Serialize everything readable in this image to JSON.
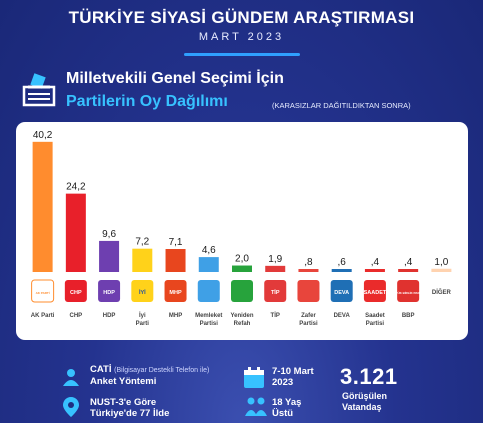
{
  "header": {
    "title": "TÜRKİYE SİYASİ GÜNDEM ARAŞTIRMASI",
    "subtitle": "MART 2023"
  },
  "colors": {
    "accent": "#37c2ff",
    "background": "#1f2d82"
  },
  "chart_data": {
    "type": "bar",
    "title_line1": "Milletvekili Genel Seçimi İçin",
    "title_line2": "Partilerin Oy Dağılımı",
    "note": "(KARASIZLAR DAĞITILDIKTAN SONRA)",
    "categories": [
      "AK Parti",
      "CHP",
      "HDP",
      "İyi Parti",
      "MHP",
      "Memleket Partisi",
      "Yeniden Refah",
      "TİP",
      "Zafer Partisi",
      "DEVA",
      "Saadet Partisi",
      "BBP",
      "DİĞER"
    ],
    "value_labels": [
      "40,2",
      "24,2",
      "9,6",
      "7,2",
      "7,1",
      "4,6",
      "2,0",
      "1,9",
      ",8",
      ",6",
      ",4",
      ",4",
      "1,0"
    ],
    "values": [
      40.2,
      24.2,
      9.6,
      7.2,
      7.1,
      4.6,
      2.0,
      1.9,
      0.8,
      0.6,
      0.4,
      0.4,
      1.0
    ],
    "colors": [
      "#ff8c2e",
      "#e8202a",
      "#6e3fb0",
      "#ffd21a",
      "#e8461e",
      "#3fa0e6",
      "#27a33c",
      "#e23a3a",
      "#e8453c",
      "#1f6fb5",
      "#ea2b2b",
      "#e0322f",
      "#ffd3b0"
    ],
    "logo_text": [
      "AK PARTİ",
      "CHP",
      "HDP",
      "İYİ",
      "MHP",
      "",
      "",
      "TİP",
      "",
      "DEVA",
      "SAADET",
      "BÜYÜK BİRLİK PARTİSİ",
      ""
    ],
    "ylim": [
      0,
      42
    ]
  },
  "footer": {
    "method_line1": "CATİ",
    "method_small": "(Bilgisayar Destekli Telefon ile)",
    "method_line2": "Anket Yöntemi",
    "nust_line1": "NUST-3'e Göre",
    "nust_line2": "Türkiye'de 77 İlde",
    "date_line1": "7-10 Mart",
    "date_line2": "2023",
    "age_line1": "18 Yaş",
    "age_line2": "Üstü",
    "count": "3.121",
    "count_label1": "Görüşülen",
    "count_label2": "Vatandaş"
  }
}
